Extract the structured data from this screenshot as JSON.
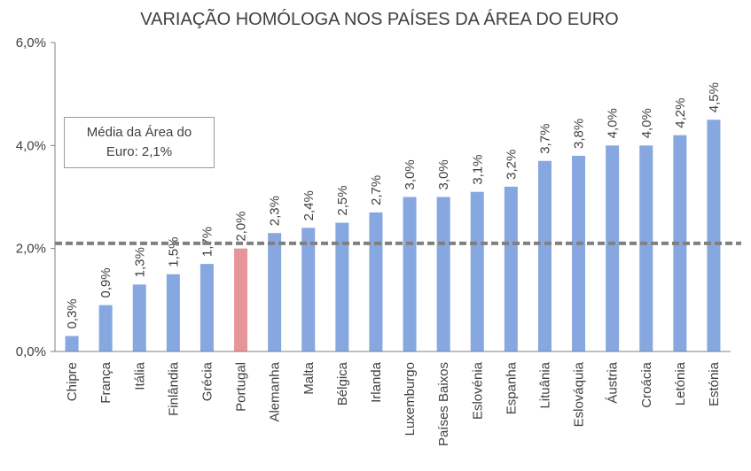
{
  "chart_data": {
    "type": "bar",
    "title": "VARIAÇÃO HOMÓLOGA NOS PAÍSES DA ÁREA DO EURO",
    "categories": [
      "Chipre",
      "França",
      "Itália",
      "Finlândia",
      "Grécia",
      "Portugal",
      "Alemanha",
      "Malta",
      "Bélgica",
      "Irlanda",
      "Luxemburgo",
      "Países Baixos",
      "Eslovénia",
      "Espanha",
      "Lituânia",
      "Eslováquia",
      "Áustria",
      "Croácia",
      "Letónia",
      "Estónia"
    ],
    "values": [
      0.3,
      0.9,
      1.3,
      1.5,
      1.7,
      2.0,
      2.3,
      2.4,
      2.5,
      2.7,
      3.0,
      3.0,
      3.1,
      3.2,
      3.7,
      3.8,
      4.0,
      4.0,
      4.2,
      4.5
    ],
    "data_labels": [
      "0,3%",
      "0,9%",
      "1,3%",
      "1,5%",
      "1,7%",
      "2,0%",
      "2,3%",
      "2,4%",
      "2,5%",
      "2,7%",
      "3,0%",
      "3,0%",
      "3,1%",
      "3,2%",
      "3,7%",
      "3,8%",
      "4,0%",
      "4,0%",
      "4,2%",
      "4,5%"
    ],
    "highlight_category": "Portugal",
    "ylim": [
      0,
      6
    ],
    "yticks": [
      0,
      2,
      4,
      6
    ],
    "ytick_labels": [
      "0,0%",
      "2,0%",
      "4,0%",
      "6,0%"
    ],
    "reference_line": {
      "value": 2.1,
      "style": "dashed"
    },
    "annotation": {
      "line1": "Média da Área do",
      "line2": "Euro: 2,1%"
    },
    "grid": false,
    "colors": {
      "bar": "#86a7e0",
      "highlight": "#e8959a",
      "reference_line": "#808080",
      "axis": "#7f7f7f",
      "text": "#404040"
    }
  }
}
